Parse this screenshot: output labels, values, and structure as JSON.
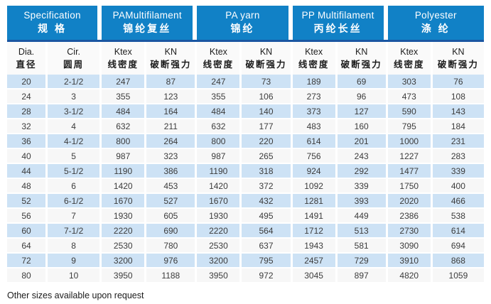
{
  "colors": {
    "header_bg": "#1181c6",
    "divider_line": "#1a56a2",
    "row_alternate": "#cde2f5",
    "row_plain": "#f7f7f7",
    "header_text": "#ffffff"
  },
  "table": {
    "column_groups": [
      {
        "en": "Specification",
        "zh": "规 格"
      },
      {
        "en": "PAMultifilament",
        "zh": "锦纶复丝"
      },
      {
        "en": "PA yarn",
        "zh": "锦纶"
      },
      {
        "en": "PP Multifilament",
        "zh": "丙纶长丝"
      },
      {
        "en": "Polyester",
        "zh": "涤 纶"
      }
    ],
    "sub_columns": [
      {
        "en": "Dia.",
        "zh": "直径"
      },
      {
        "en": "Cir.",
        "zh": "圆周"
      },
      {
        "en": "Ktex",
        "zh": "线密度"
      },
      {
        "en": "KN",
        "zh": "破断强力"
      },
      {
        "en": "Ktex",
        "zh": "线密度"
      },
      {
        "en": "KN",
        "zh": "破断强力"
      },
      {
        "en": "Ktex",
        "zh": "线密度"
      },
      {
        "en": "KN",
        "zh": "破断强力"
      },
      {
        "en": "Ktex",
        "zh": "线密度"
      },
      {
        "en": "KN",
        "zh": "破断强力"
      }
    ],
    "rows": [
      [
        "20",
        "2-1/2",
        "247",
        "87",
        "247",
        "73",
        "189",
        "69",
        "303",
        "76"
      ],
      [
        "24",
        "3",
        "355",
        "123",
        "355",
        "106",
        "273",
        "96",
        "473",
        "108"
      ],
      [
        "28",
        "3-1/2",
        "484",
        "164",
        "484",
        "140",
        "373",
        "127",
        "590",
        "143"
      ],
      [
        "32",
        "4",
        "632",
        "211",
        "632",
        "177",
        "483",
        "160",
        "795",
        "184"
      ],
      [
        "36",
        "4-1/2",
        "800",
        "264",
        "800",
        "220",
        "614",
        "201",
        "1000",
        "231"
      ],
      [
        "40",
        "5",
        "987",
        "323",
        "987",
        "265",
        "756",
        "243",
        "1227",
        "283"
      ],
      [
        "44",
        "5-1/2",
        "1190",
        "386",
        "1190",
        "318",
        "924",
        "292",
        "1477",
        "339"
      ],
      [
        "48",
        "6",
        "1420",
        "453",
        "1420",
        "372",
        "1092",
        "339",
        "1750",
        "400"
      ],
      [
        "52",
        "6-1/2",
        "1670",
        "527",
        "1670",
        "432",
        "1281",
        "393",
        "2020",
        "466"
      ],
      [
        "56",
        "7",
        "1930",
        "605",
        "1930",
        "495",
        "1491",
        "449",
        "2386",
        "538"
      ],
      [
        "60",
        "7-1/2",
        "2220",
        "690",
        "2220",
        "564",
        "1712",
        "513",
        "2730",
        "614"
      ],
      [
        "64",
        "8",
        "2530",
        "780",
        "2530",
        "637",
        "1943",
        "581",
        "3090",
        "694"
      ],
      [
        "72",
        "9",
        "3200",
        "976",
        "3200",
        "795",
        "2457",
        "729",
        "3910",
        "868"
      ],
      [
        "80",
        "10",
        "3950",
        "1188",
        "3950",
        "972",
        "3045",
        "897",
        "4820",
        "1059"
      ]
    ]
  },
  "footer_note": "Other sizes available upon request"
}
